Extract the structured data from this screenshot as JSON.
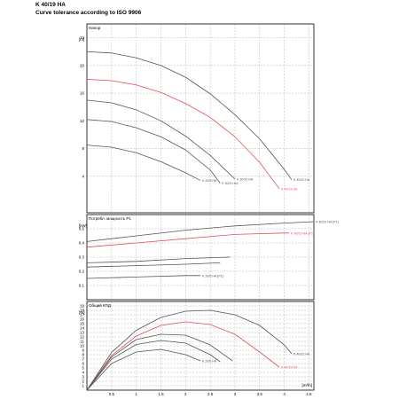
{
  "header": {
    "title": "K 40/19 HA",
    "subtitle": "Curve tolerance according to ISO 9906"
  },
  "colors": {
    "grey_curve": "#555555",
    "red_curve": "#e0505a",
    "grid": "#b4b4b4",
    "frame": "#000000"
  },
  "chart_data": [
    {
      "type": "line",
      "title": "Напор",
      "ylabel": "[m]",
      "xlabel": "",
      "xlim": [
        0,
        4.6
      ],
      "ylim": [
        0,
        26
      ],
      "yticks": [
        "4",
        "8",
        "12",
        "16",
        "20",
        "24"
      ],
      "grid": true,
      "series": [
        {
          "name": "K 40/22 HA",
          "color": "red_or_grey:grey",
          "x": [
            0,
            0.5,
            1,
            1.5,
            2,
            2.5,
            3,
            3.5,
            4,
            4.15
          ],
          "y": [
            22,
            21.8,
            21.1,
            20.0,
            18.3,
            15.9,
            12.9,
            9.4,
            5.0,
            3.5
          ]
        },
        {
          "name": "K 40/19 HA",
          "color": "red_or_grey:red",
          "x": [
            0,
            0.5,
            1,
            1.5,
            2,
            2.5,
            3,
            3.5,
            3.9
          ],
          "y": [
            18.0,
            17.8,
            17.2,
            16.1,
            14.5,
            12.5,
            9.7,
            6.0,
            2.2
          ]
        },
        {
          "name": "K 30/10 HA",
          "color": "red_or_grey:grey",
          "x": [
            0,
            0.5,
            1,
            1.5,
            2,
            2.5,
            3.0
          ],
          "y": [
            15,
            14.6,
            13.6,
            12.0,
            9.8,
            7.0,
            3.6
          ]
        },
        {
          "name": "K 30/10 HA",
          "color": "red_or_grey:grey",
          "x": [
            0,
            0.5,
            1,
            1.5,
            2,
            2.5,
            2.7
          ],
          "y": [
            12.2,
            11.9,
            11.0,
            9.7,
            7.8,
            4.9,
            3.0
          ]
        },
        {
          "name": "K 20/5 HA",
          "color": "red_or_grey:grey",
          "x": [
            0,
            0.5,
            1,
            1.5,
            2,
            2.3
          ],
          "y": [
            8.5,
            8.2,
            7.4,
            6.1,
            4.5,
            3.4
          ]
        }
      ]
    },
    {
      "type": "line",
      "title": "Потребл. мощность P1",
      "ylabel": "[kW]",
      "xlabel": "",
      "xlim": [
        0,
        4.6
      ],
      "ylim": [
        0,
        0.6
      ],
      "yticks": [
        "0.1",
        "0.2",
        "0.3",
        "0.4",
        "0.5"
      ],
      "grid": true,
      "series": [
        {
          "name": "K 40/22 HA (P1)",
          "color": "red_or_grey:grey",
          "x": [
            0,
            1,
            2,
            3,
            4,
            4.6
          ],
          "y": [
            0.41,
            0.45,
            0.49,
            0.52,
            0.54,
            0.55
          ]
        },
        {
          "name": "K 40/19 HA (P1)",
          "color": "red_or_grey:red",
          "x": [
            0,
            1,
            2,
            3,
            4,
            4.1
          ],
          "y": [
            0.37,
            0.4,
            0.43,
            0.46,
            0.47,
            0.47
          ]
        },
        {
          "name": "",
          "color": "red_or_grey:grey",
          "x": [
            0,
            1,
            2,
            2.9
          ],
          "y": [
            0.26,
            0.27,
            0.29,
            0.3
          ]
        },
        {
          "name": "",
          "color": "red_or_grey:grey",
          "x": [
            0,
            1,
            2,
            2.7
          ],
          "y": [
            0.23,
            0.24,
            0.25,
            0.26
          ]
        },
        {
          "name": "K 20/5 HA (P1)",
          "color": "red_or_grey:grey",
          "x": [
            0,
            1,
            2,
            2.3
          ],
          "y": [
            0.15,
            0.16,
            0.17,
            0.17
          ]
        }
      ]
    },
    {
      "type": "line",
      "title": "Общий КПД",
      "ylabel": "[%]",
      "xlabel": "[m³/h]",
      "xlim": [
        0,
        4.6
      ],
      "ylim": [
        0,
        20
      ],
      "yticks": [
        "1",
        "2",
        "3",
        "4",
        "5",
        "6",
        "7",
        "8",
        "9",
        "10",
        "11",
        "12",
        "13",
        "14",
        "15",
        "16",
        "17",
        "18",
        "19"
      ],
      "xticks": [
        "0.5",
        "1",
        "1.5",
        "2",
        "2.5",
        "3",
        "3.5",
        "4",
        "4.5"
      ],
      "grid": true,
      "series": [
        {
          "name": "K 40/22 HA",
          "color": "red_or_grey:grey",
          "x": [
            0,
            0.5,
            1,
            1.5,
            2,
            2.5,
            3,
            3.5,
            4,
            4.15
          ],
          "y": [
            0,
            8.5,
            13.5,
            16.4,
            17.8,
            18.0,
            17.0,
            14.6,
            10.2,
            8.2
          ]
        },
        {
          "name": "K 40/19 HA",
          "color": "red_or_grey:red",
          "x": [
            0,
            0.5,
            1,
            1.5,
            2,
            2.5,
            3,
            3.5,
            3.9
          ],
          "y": [
            0,
            7.8,
            12.2,
            14.6,
            15.4,
            14.8,
            12.6,
            8.6,
            5.2
          ]
        },
        {
          "name": "",
          "color": "red_or_grey:grey",
          "x": [
            0,
            0.5,
            1,
            1.5,
            2,
            2.5,
            2.95
          ],
          "y": [
            0,
            7.5,
            11.4,
            12.6,
            12.4,
            10.2,
            6.6
          ]
        },
        {
          "name": "",
          "color": "red_or_grey:grey",
          "x": [
            0,
            0.5,
            1,
            1.5,
            2,
            2.5,
            2.7
          ],
          "y": [
            0,
            7.0,
            10.3,
            11.2,
            10.6,
            8.0,
            6.4
          ]
        },
        {
          "name": "K 20/5 HA",
          "color": "red_or_grey:grey",
          "x": [
            0,
            0.5,
            1,
            1.5,
            2,
            2.3
          ],
          "y": [
            0,
            6.0,
            8.6,
            9.2,
            8.0,
            6.6
          ]
        }
      ]
    }
  ]
}
